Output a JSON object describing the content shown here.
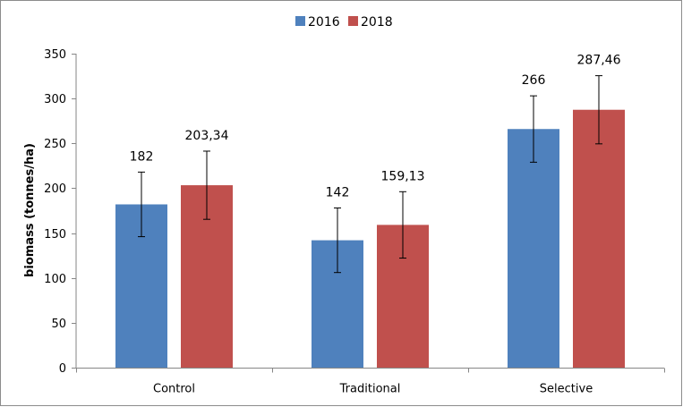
{
  "chart_data": {
    "type": "bar",
    "categories": [
      "Control",
      "Traditional",
      "Selective"
    ],
    "series": [
      {
        "name": "2016",
        "values": [
          182,
          142,
          266
        ],
        "errors": [
          36,
          36,
          37
        ],
        "labels": [
          "182",
          "142",
          "266"
        ],
        "color": "#4f81bd"
      },
      {
        "name": "2018",
        "values": [
          203.34,
          159.13,
          287.46
        ],
        "errors": [
          38,
          37,
          38
        ],
        "labels": [
          "203,34",
          "159,13",
          "287,46"
        ],
        "color": "#c0504d"
      }
    ],
    "xlabel": "",
    "ylabel": "biomass (tonnes/ha)",
    "ylim": [
      0,
      350
    ],
    "yticks": [
      0,
      50,
      100,
      150,
      200,
      250,
      300,
      350
    ],
    "grid": false,
    "legend_position": "top-center"
  }
}
